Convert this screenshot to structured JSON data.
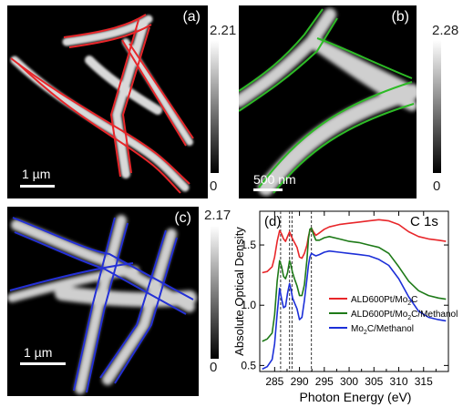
{
  "panels": {
    "a": {
      "label": "(a)",
      "scale": "1 µm",
      "cbar_max": "2.21",
      "cbar_min": "0",
      "outline_color": "#e8262a"
    },
    "b": {
      "label": "(b)",
      "scale": "500 nm",
      "cbar_max": "2.28",
      "cbar_min": "0",
      "outline_color": "#2dbb26"
    },
    "c": {
      "label": "(c)",
      "scale": "1 µm",
      "cbar_max": "2.17",
      "cbar_min": "0",
      "outline_color": "#2430d6"
    }
  },
  "chart_data": {
    "type": "line",
    "panel_label": "(d)",
    "annotation": "C 1s",
    "xlabel": "Photon Energy (eV)",
    "ylabel": "Absolute Optical Density",
    "xlim": [
      282,
      320
    ],
    "ylim": [
      0.45,
      1.78
    ],
    "xticks": [
      285,
      290,
      295,
      300,
      305,
      310,
      315
    ],
    "yticks": [
      0.5,
      1.0,
      1.5
    ],
    "vlines": [
      286.2,
      288.0,
      288.5,
      292.4
    ],
    "legend_position": "center-right",
    "series": [
      {
        "name": "ALD600Pt/Mo2C",
        "legend": [
          "ALD600Pt/Mo",
          "2",
          "C"
        ],
        "color": "#e8262a",
        "x": [
          282.5,
          283.5,
          284.5,
          285.0,
          285.5,
          286.0,
          286.4,
          286.8,
          287.2,
          287.6,
          288.0,
          288.3,
          288.6,
          289.0,
          289.5,
          290.0,
          290.5,
          291.0,
          291.5,
          291.8,
          292.1,
          292.4,
          292.8,
          293.3,
          294,
          295,
          296,
          298,
          300,
          302,
          304,
          306,
          308,
          310,
          312,
          314,
          316,
          318,
          319.5
        ],
        "y": [
          1.27,
          1.28,
          1.32,
          1.4,
          1.53,
          1.62,
          1.59,
          1.55,
          1.53,
          1.57,
          1.61,
          1.58,
          1.55,
          1.52,
          1.48,
          1.4,
          1.39,
          1.43,
          1.5,
          1.57,
          1.62,
          1.64,
          1.61,
          1.58,
          1.6,
          1.63,
          1.65,
          1.67,
          1.68,
          1.69,
          1.7,
          1.71,
          1.7,
          1.67,
          1.61,
          1.57,
          1.55,
          1.54,
          1.53
        ]
      },
      {
        "name": "ALD600Pt/Mo2C/Methanol",
        "legend": [
          "ALD600Pt/Mo",
          "2",
          "C/Methanol"
        ],
        "color": "#1e7a18",
        "x": [
          282.5,
          283.5,
          284.5,
          285.0,
          285.5,
          286.0,
          286.4,
          286.8,
          287.2,
          287.6,
          288.0,
          288.3,
          288.6,
          289.0,
          289.5,
          290.0,
          290.5,
          291.0,
          291.5,
          291.8,
          292.1,
          292.4,
          292.8,
          293.3,
          294,
          295,
          296,
          298,
          300,
          302,
          304,
          306,
          308,
          310,
          312,
          314,
          316,
          318,
          319.5
        ],
        "y": [
          0.7,
          0.72,
          0.77,
          0.92,
          1.2,
          1.37,
          1.32,
          1.24,
          1.22,
          1.27,
          1.37,
          1.33,
          1.27,
          1.22,
          1.16,
          1.08,
          1.08,
          1.17,
          1.38,
          1.55,
          1.63,
          1.64,
          1.59,
          1.54,
          1.54,
          1.56,
          1.57,
          1.55,
          1.53,
          1.52,
          1.5,
          1.48,
          1.43,
          1.32,
          1.2,
          1.12,
          1.08,
          1.06,
          1.05
        ]
      },
      {
        "name": "Mo2C/Methanol",
        "legend": [
          "Mo",
          "2",
          "C/Methanol"
        ],
        "color": "#1c2fd8",
        "x": [
          282.5,
          283.5,
          284.5,
          285.0,
          285.5,
          286.0,
          286.4,
          286.8,
          287.2,
          287.6,
          288.0,
          288.3,
          288.6,
          289.0,
          289.5,
          290.0,
          290.5,
          291.0,
          291.5,
          291.8,
          292.1,
          292.4,
          292.8,
          293.3,
          294,
          295,
          296,
          298,
          300,
          302,
          304,
          306,
          308,
          310,
          312,
          314,
          316,
          318,
          319.5
        ],
        "y": [
          0.47,
          0.49,
          0.55,
          0.68,
          0.93,
          1.14,
          1.05,
          0.98,
          0.99,
          1.1,
          1.18,
          1.13,
          1.06,
          1.02,
          0.97,
          0.88,
          0.9,
          1.04,
          1.22,
          1.33,
          1.4,
          1.43,
          1.42,
          1.41,
          1.42,
          1.44,
          1.45,
          1.44,
          1.43,
          1.42,
          1.41,
          1.38,
          1.33,
          1.22,
          1.07,
          0.95,
          0.9,
          0.88,
          0.87
        ]
      }
    ]
  }
}
